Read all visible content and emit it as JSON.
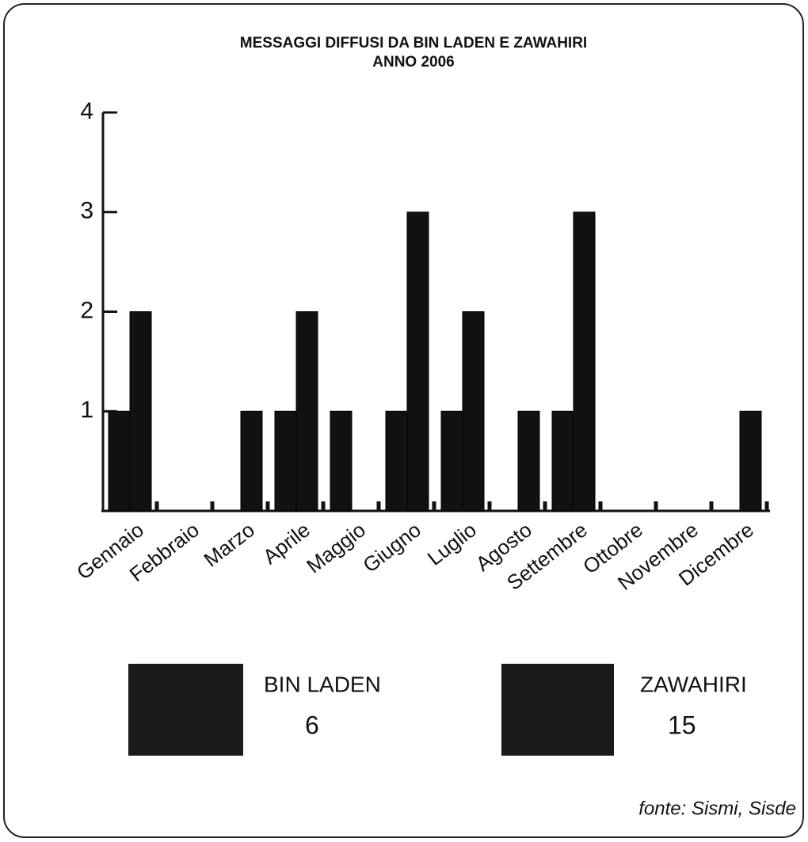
{
  "chart_data": {
    "type": "bar",
    "title": "MESSAGGI DIFFUSI DA BIN LADEN E ZAWAHIRI",
    "subtitle": "ANNO 2006",
    "categories": [
      "Gennaio",
      "Febbraio",
      "Marzo",
      "Aprile",
      "Maggio",
      "Giugno",
      "Luglio",
      "Agosto",
      "Settembre",
      "Ottobre",
      "Novembre",
      "Dicembre"
    ],
    "series": [
      {
        "name": "BIN LADEN",
        "color": "#111111",
        "values": [
          1,
          0,
          0,
          1,
          1,
          1,
          1,
          0,
          1,
          0,
          0,
          0
        ],
        "total": 6
      },
      {
        "name": "ZAWAHIRI",
        "color": "#111111",
        "values": [
          2,
          0,
          1,
          2,
          0,
          3,
          2,
          1,
          3,
          0,
          0,
          1
        ],
        "total": 15
      }
    ],
    "ylim": [
      0,
      4
    ],
    "yticks": [
      1,
      2,
      3,
      4
    ],
    "source": "fonte: Sismi, Sisde"
  }
}
